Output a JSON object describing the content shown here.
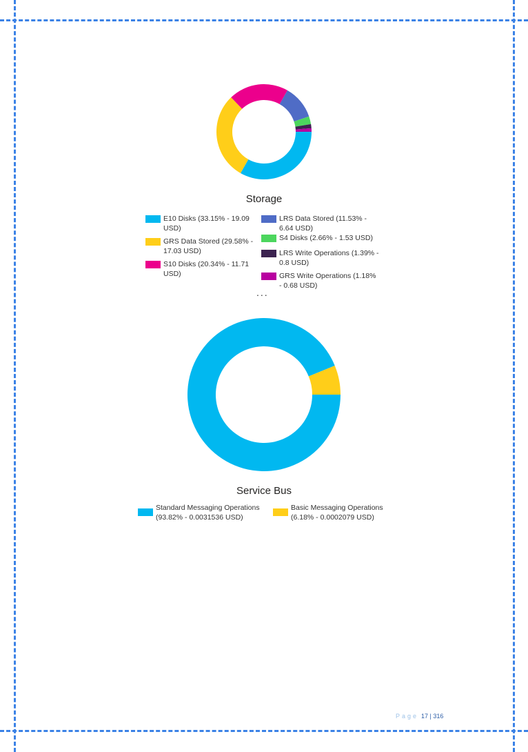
{
  "chart_data": [
    {
      "type": "pie",
      "donut": true,
      "title": "Storage",
      "categories": [
        "E10 Disks",
        "GRS Data Stored",
        "S10 Disks",
        "LRS Data Stored",
        "S4 Disks",
        "LRS Write Operations",
        "GRS Write Operations"
      ],
      "values": [
        19.09,
        17.03,
        11.71,
        6.64,
        1.53,
        0.8,
        0.68
      ],
      "percent": [
        33.15,
        29.58,
        20.34,
        11.53,
        2.66,
        1.39,
        1.18
      ],
      "colors": [
        "#01B8F0",
        "#FFCE19",
        "#EC008C",
        "#4F6CC6",
        "#4CD65E",
        "#3C2350",
        "#B800A0"
      ],
      "legend_labels": [
        "E10 Disks (33.15% - 19.09 USD)",
        "GRS Data Stored (29.58% - 17.03 USD)",
        "S10 Disks (20.34% - 11.71 USD)",
        "LRS Data Stored (11.53% - 6.64 USD)",
        "S4 Disks (2.66% - 1.53 USD)",
        "LRS Write Operations (1.39% - 0.8 USD)",
        "GRS Write Operations (1.18% - 0.68 USD)"
      ],
      "legend_position": "bottom",
      "legend_more": "..."
    },
    {
      "type": "pie",
      "donut": true,
      "title": "Service Bus",
      "categories": [
        "Standard Messaging Operations",
        "Basic Messaging Operations"
      ],
      "values": [
        0.0031536,
        0.0002079
      ],
      "percent": [
        93.82,
        6.18
      ],
      "colors": [
        "#01B8F0",
        "#FFCE19"
      ],
      "legend_labels": [
        "Standard Messaging Operations (93.82% - 0.0031536 USD)",
        "Basic Messaging Operations (6.18% - 0.0002079 USD)"
      ],
      "legend_position": "bottom"
    }
  ],
  "footer": {
    "page_word": "Page",
    "page_number": "17 | 316"
  }
}
